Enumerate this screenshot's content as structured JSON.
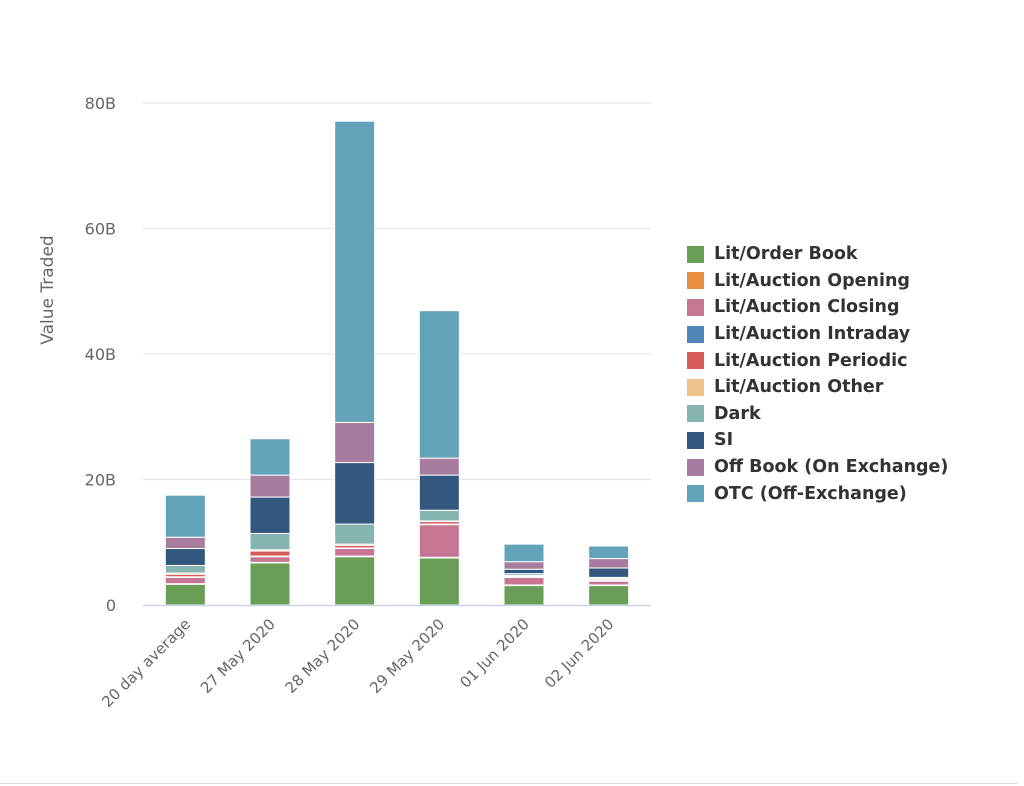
{
  "chart_data": {
    "type": "bar",
    "stacked": true,
    "title": "",
    "xlabel": "",
    "ylabel": "Value Traded",
    "ylim": [
      0,
      80
    ],
    "yticks": [
      "0",
      "20B",
      "40B",
      "60B",
      "80B"
    ],
    "ytick_values": [
      0,
      20,
      40,
      60,
      80
    ],
    "grid": true,
    "legend_position": "right",
    "categories": [
      "20 day average",
      "27 May 2020",
      "28 May 2020",
      "29 May 2020",
      "01 Jun 2020",
      "02 Jun 2020"
    ],
    "series": [
      {
        "name": "Lit/Order Book",
        "color": "#6a9d55",
        "values": [
          3.3,
          6.7,
          7.7,
          7.5,
          3.1,
          3.1
        ]
      },
      {
        "name": "Lit/Auction Opening",
        "color": "#e8903f",
        "values": [
          0.1,
          0.1,
          0.1,
          0.1,
          0.1,
          0.1
        ]
      },
      {
        "name": "Lit/Auction Closing",
        "color": "#c67592",
        "values": [
          1.0,
          0.9,
          1.2,
          5.2,
          1.2,
          0.6
        ]
      },
      {
        "name": "Lit/Auction Intraday",
        "color": "#4f87b9",
        "values": [
          0.1,
          0.1,
          0.1,
          0.1,
          0.1,
          0.1
        ]
      },
      {
        "name": "Lit/Auction Periodic",
        "color": "#d75b5b",
        "values": [
          0.4,
          0.8,
          0.4,
          0.4,
          0.1,
          0.2
        ]
      },
      {
        "name": "Lit/Auction Other",
        "color": "#f2c28c",
        "values": [
          0.2,
          0.2,
          0.2,
          0.1,
          0.1,
          0.1
        ]
      },
      {
        "name": "Dark",
        "color": "#86b5b1",
        "values": [
          1.2,
          2.6,
          3.2,
          1.7,
          0.3,
          0.2
        ]
      },
      {
        "name": "SI",
        "color": "#34577f",
        "values": [
          2.7,
          5.8,
          9.8,
          5.6,
          0.7,
          1.5
        ]
      },
      {
        "name": "Off Book (On Exchange)",
        "color": "#a87c9e",
        "values": [
          1.8,
          3.5,
          6.4,
          2.7,
          1.2,
          1.5
        ]
      },
      {
        "name": "OTC (Off-Exchange)",
        "color": "#62a3b9",
        "values": [
          6.7,
          5.8,
          48.0,
          23.5,
          2.8,
          2.0
        ]
      }
    ]
  }
}
